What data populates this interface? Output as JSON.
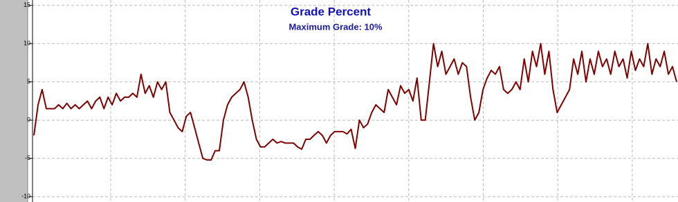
{
  "chart_data": {
    "type": "line",
    "title": "Grade Percent",
    "subtitle": "Maximum Grade: 10%",
    "values": [
      -2,
      2,
      4,
      1.5,
      1.5,
      1.5,
      2,
      1.5,
      2.2,
      1.5,
      2,
      1.5,
      2,
      2.5,
      1.5,
      2.5,
      3,
      1.5,
      3,
      2,
      3.5,
      2.5,
      3,
      3,
      3.5,
      3,
      6,
      3.5,
      4.5,
      3,
      5,
      4,
      5,
      1,
      0,
      -1,
      -1.5,
      0.5,
      1,
      -1,
      -3,
      -5,
      -5.2,
      -5.2,
      -4,
      -4,
      0,
      2,
      3,
      3.5,
      4,
      5,
      3,
      0,
      -2.5,
      -3.5,
      -3.5,
      -3,
      -2.5,
      -3,
      -2.8,
      -3,
      -3,
      -3,
      -3.5,
      -3.8,
      -2.5,
      -2.5,
      -2,
      -1.5,
      -2,
      -3,
      -2,
      -1.5,
      -1.5,
      -1.5,
      -1.8,
      -1.2,
      -3.7,
      0,
      -1,
      -0.5,
      1,
      2,
      1.5,
      1,
      4,
      3,
      2,
      4.5,
      3.5,
      4,
      2.5,
      5.5,
      0,
      0,
      5,
      10,
      7,
      9,
      6,
      7,
      8,
      6,
      7.5,
      7,
      3,
      0,
      1,
      4,
      5.5,
      6.5,
      6,
      7,
      4,
      3.5,
      4,
      5,
      4,
      8,
      5,
      9,
      7,
      10,
      6,
      9,
      4,
      1,
      2,
      3,
      4,
      8,
      6,
      9,
      5,
      8,
      6,
      9,
      7,
      8,
      6,
      9,
      7,
      8,
      5.5,
      9,
      6.5,
      8,
      7,
      10,
      6,
      8,
      7,
      9,
      6,
      7,
      5
    ],
    "color": "#800000",
    "ylim": [
      -10.7,
      15.7
    ],
    "yticks": [
      -10,
      -5,
      0,
      5,
      10,
      15
    ],
    "grid": true
  }
}
